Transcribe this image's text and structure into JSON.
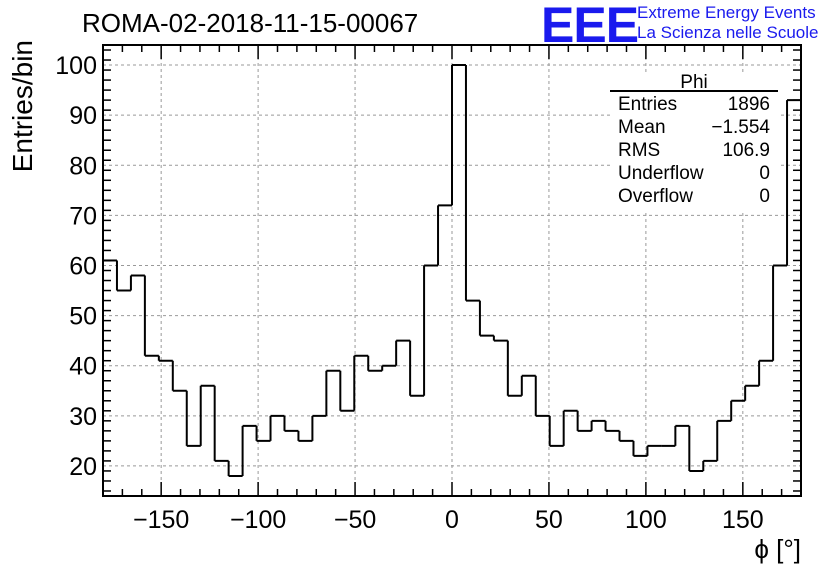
{
  "title": "ROMA-02-2018-11-15-00067",
  "logo": {
    "text": "EEE",
    "line1": "Extreme Energy Events",
    "line2": "La Scienza nelle Scuole",
    "color": "#1a1aee"
  },
  "stats": {
    "header": "Phi",
    "rows": [
      {
        "label": "Entries",
        "value": "1896"
      },
      {
        "label": "Mean",
        "value": "−1.554"
      },
      {
        "label": "RMS",
        "value": "106.9"
      },
      {
        "label": "Underflow",
        "value": "0"
      },
      {
        "label": "Overflow",
        "value": "0"
      }
    ]
  },
  "chart_data": {
    "type": "bar",
    "style": "step-histogram",
    "title": "ROMA-02-2018-11-15-00067",
    "xlabel": "ϕ [°]",
    "ylabel": "Entries/bin",
    "xlim": [
      -180,
      180
    ],
    "ylim": [
      14,
      104
    ],
    "grid": true,
    "x_ticks": [
      -150,
      -100,
      -50,
      0,
      50,
      100,
      150
    ],
    "x_tick_labels": [
      "−150",
      "−100",
      "−50",
      "0",
      "50",
      "100",
      "150"
    ],
    "y_ticks": [
      20,
      30,
      40,
      50,
      60,
      70,
      80,
      90,
      100
    ],
    "y_tick_labels": [
      "20",
      "30",
      "40",
      "50",
      "60",
      "70",
      "80",
      "90",
      "100"
    ],
    "bin_width": 7.2,
    "values": [
      61,
      55,
      58,
      42,
      41,
      35,
      24,
      36,
      21,
      18,
      28,
      25,
      30,
      27,
      25,
      30,
      39,
      31,
      42,
      39,
      40,
      45,
      34,
      60,
      72,
      100,
      53,
      46,
      45,
      34,
      38,
      30,
      24,
      31,
      27,
      29,
      27,
      25,
      22,
      24,
      24,
      28,
      19,
      21,
      29,
      33,
      36,
      41,
      60,
      93
    ]
  }
}
